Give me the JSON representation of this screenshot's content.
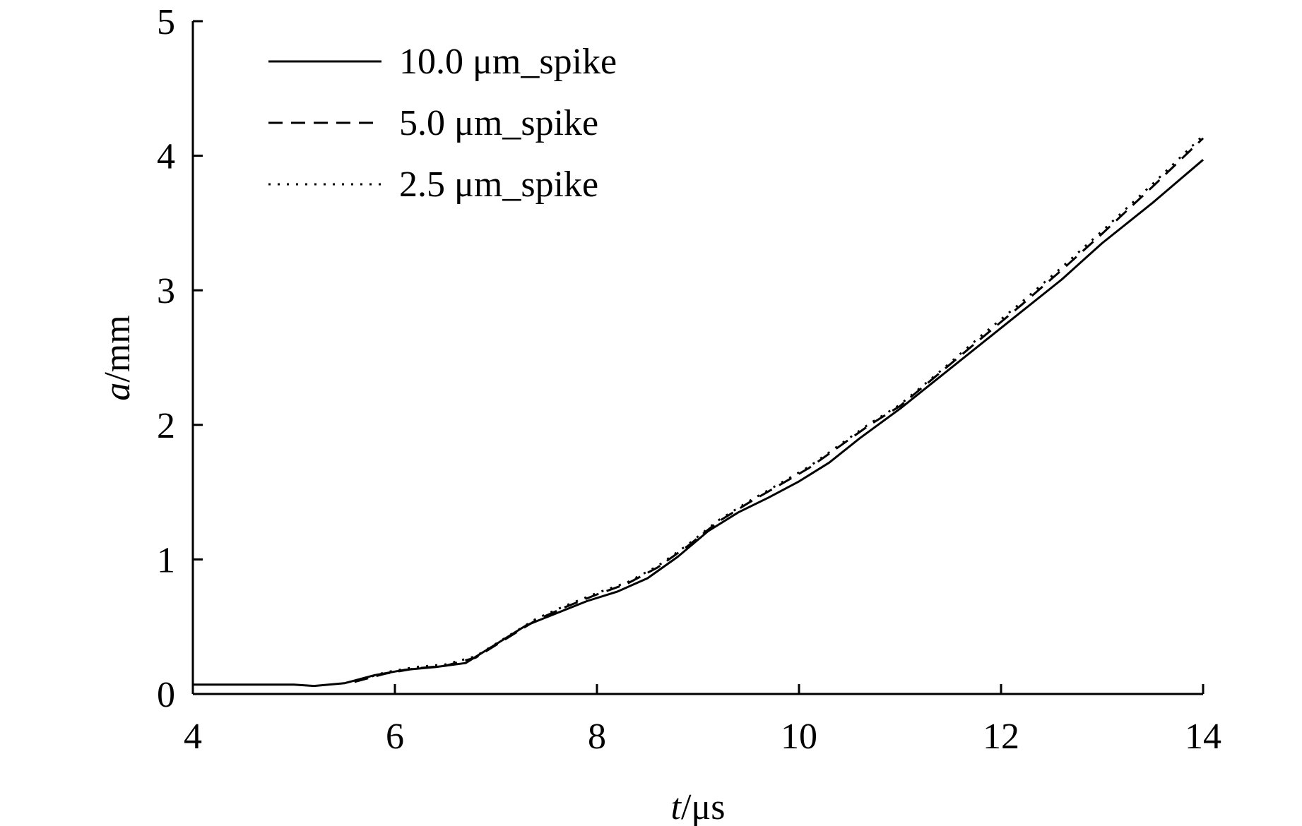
{
  "chart_data": {
    "type": "line",
    "xlabel": {
      "var": "t",
      "unit": "/μs"
    },
    "ylabel": {
      "var": "a",
      "unit": "/mm"
    },
    "xlim": [
      4,
      14
    ],
    "ylim": [
      0,
      5
    ],
    "x_ticks": [
      4,
      6,
      8,
      10,
      12,
      14
    ],
    "y_ticks": [
      0,
      1,
      2,
      3,
      4,
      5
    ],
    "grid": false,
    "legend_position": "top-left",
    "series": [
      {
        "name": "10.0 μm_spike",
        "style": "solid",
        "points": [
          [
            4.0,
            0.07
          ],
          [
            5.0,
            0.07
          ],
          [
            5.2,
            0.06
          ],
          [
            5.5,
            0.08
          ],
          [
            5.8,
            0.14
          ],
          [
            6.1,
            0.18
          ],
          [
            6.4,
            0.2
          ],
          [
            6.7,
            0.23
          ],
          [
            7.0,
            0.37
          ],
          [
            7.3,
            0.51
          ],
          [
            7.6,
            0.6
          ],
          [
            7.9,
            0.69
          ],
          [
            8.2,
            0.76
          ],
          [
            8.5,
            0.86
          ],
          [
            8.8,
            1.02
          ],
          [
            9.1,
            1.21
          ],
          [
            9.4,
            1.35
          ],
          [
            9.7,
            1.46
          ],
          [
            10.0,
            1.58
          ],
          [
            10.3,
            1.72
          ],
          [
            10.6,
            1.9
          ],
          [
            11.0,
            2.12
          ],
          [
            11.4,
            2.36
          ],
          [
            11.8,
            2.6
          ],
          [
            12.2,
            2.84
          ],
          [
            12.6,
            3.08
          ],
          [
            13.0,
            3.35
          ],
          [
            13.5,
            3.65
          ],
          [
            14.0,
            3.97
          ]
        ]
      },
      {
        "name": "5.0 μm_spike",
        "style": "dashed",
        "points": [
          [
            5.6,
            0.09
          ],
          [
            5.9,
            0.15
          ],
          [
            6.2,
            0.19
          ],
          [
            6.5,
            0.21
          ],
          [
            6.8,
            0.27
          ],
          [
            7.1,
            0.41
          ],
          [
            7.4,
            0.55
          ],
          [
            7.7,
            0.65
          ],
          [
            8.0,
            0.74
          ],
          [
            8.3,
            0.82
          ],
          [
            8.6,
            0.94
          ],
          [
            8.9,
            1.1
          ],
          [
            9.2,
            1.28
          ],
          [
            9.5,
            1.42
          ],
          [
            9.8,
            1.55
          ],
          [
            10.1,
            1.68
          ],
          [
            10.4,
            1.84
          ],
          [
            10.7,
            2.0
          ],
          [
            11.0,
            2.14
          ],
          [
            11.4,
            2.39
          ],
          [
            11.8,
            2.64
          ],
          [
            12.2,
            2.89
          ],
          [
            12.6,
            3.15
          ],
          [
            13.0,
            3.42
          ],
          [
            13.5,
            3.77
          ],
          [
            14.0,
            4.13
          ]
        ]
      },
      {
        "name": "2.5 μm_spike",
        "style": "dotted",
        "points": [
          [
            5.6,
            0.09
          ],
          [
            5.9,
            0.16
          ],
          [
            6.2,
            0.2
          ],
          [
            6.5,
            0.22
          ],
          [
            6.8,
            0.28
          ],
          [
            7.1,
            0.42
          ],
          [
            7.4,
            0.56
          ],
          [
            7.7,
            0.66
          ],
          [
            8.0,
            0.75
          ],
          [
            8.3,
            0.83
          ],
          [
            8.6,
            0.95
          ],
          [
            8.9,
            1.11
          ],
          [
            9.2,
            1.29
          ],
          [
            9.5,
            1.43
          ],
          [
            9.8,
            1.56
          ],
          [
            10.1,
            1.69
          ],
          [
            10.4,
            1.85
          ],
          [
            10.7,
            2.01
          ],
          [
            11.0,
            2.15
          ],
          [
            11.4,
            2.4
          ],
          [
            11.8,
            2.66
          ],
          [
            12.2,
            2.91
          ],
          [
            12.6,
            3.17
          ],
          [
            13.0,
            3.44
          ],
          [
            13.5,
            3.79
          ],
          [
            14.0,
            4.15
          ]
        ]
      }
    ]
  }
}
